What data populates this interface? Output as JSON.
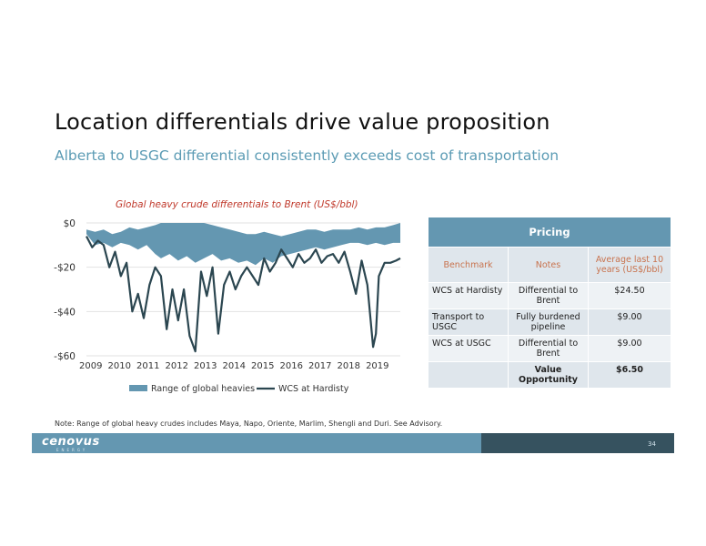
{
  "slide": {
    "title": "Location differentials drive value proposition",
    "subtitle": "Alberta to USGC differential consistently exceeds cost of  transportation",
    "note": "Note: Range of global heavy crudes includes Maya, Napo, Oriente, Marlim, Shengli and Duri. See Advisory.",
    "page_number": "34",
    "logo": "cenovus",
    "logo_sub": "ENERGY"
  },
  "pricing": {
    "title": "Pricing",
    "headers": [
      "Benchmark",
      "Notes",
      "Average last 10 years (US$/bbl)"
    ],
    "rows": [
      [
        "WCS at Hardisty",
        "Differential to Brent",
        "$24.50"
      ],
      [
        "Transport to USGC",
        "Fully burdened pipeline",
        "$9.00"
      ],
      [
        "WCS at USGC",
        "Differential to Brent",
        "$9.00"
      ],
      [
        "",
        "Value Opportunity",
        "$6.50"
      ]
    ]
  },
  "colors": {
    "title_text": "#111111",
    "subtitle": "#5b9bb4",
    "chart_title": "#c0392b",
    "range_fill": "#6497b1",
    "wcs_line": "#2b4650",
    "table_header": "#6497b1",
    "table_colhead_text": "#c8734e",
    "footer_light": "#6497b1",
    "footer_dark": "#36525f"
  },
  "chart_data": {
    "type": "area",
    "title": "Global heavy crude differentials to Brent  (US$/bbl)",
    "xlabel": "",
    "ylabel": "",
    "yticks": [
      0,
      -20,
      -40,
      -60
    ],
    "ytick_labels": [
      "$0",
      "-$20",
      "-$40",
      "-$60"
    ],
    "xtick_labels": [
      "2009",
      "2010",
      "2011",
      "2012",
      "2013",
      "2014",
      "2015",
      "2016",
      "2017",
      "2018",
      "2019"
    ],
    "ylim": [
      -60,
      0
    ],
    "xlim": [
      2009.0,
      2019.95
    ],
    "legend": [
      "Range of global heavies",
      "WCS at Hardisty"
    ],
    "legend_position": "bottom",
    "series": [
      {
        "name": "Range of global heavies",
        "kind": "range",
        "x": [
          2009.0,
          2009.3,
          2009.6,
          2009.9,
          2010.2,
          2010.5,
          2010.8,
          2011.1,
          2011.4,
          2011.6,
          2011.9,
          2012.2,
          2012.5,
          2012.8,
          2013.1,
          2013.4,
          2013.7,
          2014.0,
          2014.3,
          2014.6,
          2014.9,
          2015.2,
          2015.5,
          2015.8,
          2016.1,
          2016.4,
          2016.7,
          2017.0,
          2017.3,
          2017.6,
          2017.9,
          2018.2,
          2018.5,
          2018.8,
          2019.1,
          2019.4,
          2019.7,
          2019.95
        ],
        "upper": [
          -3,
          -4,
          -3,
          -5,
          -4,
          -2,
          -3,
          -2,
          -1,
          0,
          0,
          0,
          0,
          0,
          0,
          -1,
          -2,
          -3,
          -4,
          -5,
          -5,
          -4,
          -5,
          -6,
          -5,
          -4,
          -3,
          -3,
          -4,
          -3,
          -3,
          -3,
          -2,
          -3,
          -2,
          -2,
          -1,
          0
        ],
        "lower": [
          -5,
          -10,
          -9,
          -11,
          -9,
          -10,
          -12,
          -10,
          -14,
          -16,
          -14,
          -17,
          -15,
          -18,
          -16,
          -14,
          -17,
          -16,
          -18,
          -17,
          -19,
          -16,
          -18,
          -15,
          -14,
          -13,
          -12,
          -11,
          -12,
          -11,
          -10,
          -9,
          -9,
          -10,
          -9,
          -10,
          -9,
          -9
        ]
      },
      {
        "name": "WCS at Hardisty",
        "kind": "line",
        "x": [
          2009.0,
          2009.2,
          2009.4,
          2009.6,
          2009.8,
          2010.0,
          2010.2,
          2010.4,
          2010.6,
          2010.8,
          2011.0,
          2011.2,
          2011.4,
          2011.6,
          2011.8,
          2012.0,
          2012.2,
          2012.4,
          2012.6,
          2012.8,
          2013.0,
          2013.2,
          2013.4,
          2013.6,
          2013.8,
          2014.0,
          2014.2,
          2014.4,
          2014.6,
          2014.8,
          2015.0,
          2015.2,
          2015.4,
          2015.6,
          2015.8,
          2016.0,
          2016.2,
          2016.4,
          2016.6,
          2016.8,
          2017.0,
          2017.2,
          2017.4,
          2017.6,
          2017.8,
          2018.0,
          2018.2,
          2018.4,
          2018.6,
          2018.8,
          2019.0,
          2019.1,
          2019.2,
          2019.4,
          2019.6,
          2019.8,
          2019.95
        ],
        "y": [
          -6,
          -11,
          -8,
          -10,
          -20,
          -13,
          -24,
          -18,
          -40,
          -32,
          -43,
          -28,
          -20,
          -24,
          -48,
          -30,
          -44,
          -30,
          -51,
          -58,
          -22,
          -33,
          -20,
          -50,
          -28,
          -22,
          -30,
          -24,
          -20,
          -24,
          -28,
          -16,
          -22,
          -18,
          -12,
          -16,
          -20,
          -14,
          -18,
          -16,
          -12,
          -18,
          -15,
          -14,
          -18,
          -13,
          -22,
          -32,
          -17,
          -28,
          -56,
          -50,
          -24,
          -18,
          -18,
          -17,
          -16
        ]
      }
    ]
  }
}
